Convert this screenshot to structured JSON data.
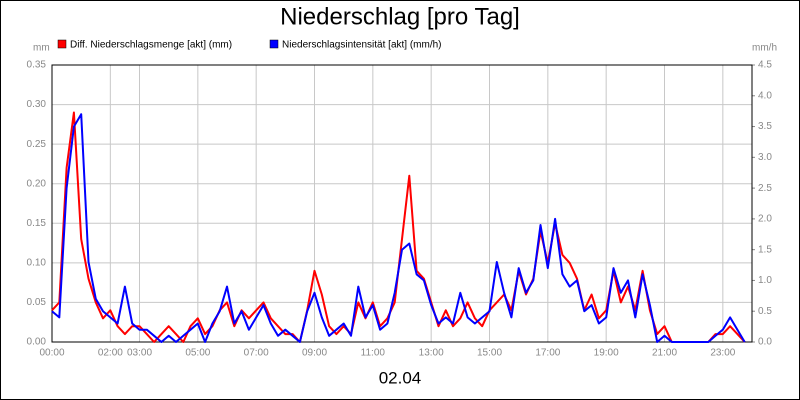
{
  "chart_data": {
    "type": "line",
    "title": "Niederschlag [pro Tag]",
    "xlabel": "02.04",
    "ylabel": "mm",
    "y2label": "mm/h",
    "grid": true,
    "x": [
      0,
      0.25,
      0.5,
      0.75,
      1,
      1.25,
      1.5,
      1.75,
      2,
      2.25,
      2.5,
      2.75,
      3,
      3.25,
      3.5,
      3.75,
      4,
      4.25,
      4.5,
      4.75,
      5,
      5.25,
      5.5,
      5.75,
      6,
      6.25,
      6.5,
      6.75,
      7,
      7.25,
      7.5,
      7.75,
      8,
      8.25,
      8.5,
      8.75,
      9,
      9.25,
      9.5,
      9.75,
      10,
      10.25,
      10.5,
      10.75,
      11,
      11.25,
      11.5,
      11.75,
      12,
      12.25,
      12.5,
      12.75,
      13,
      13.25,
      13.5,
      13.75,
      14,
      14.25,
      14.5,
      14.75,
      15,
      15.25,
      15.5,
      15.75,
      16,
      16.25,
      16.5,
      16.75,
      17,
      17.25,
      17.5,
      17.75,
      18,
      18.25,
      18.5,
      18.75,
      19,
      19.25,
      19.5,
      19.75,
      20,
      20.25,
      20.5,
      20.75,
      21,
      21.25,
      21.5,
      21.75,
      22,
      22.25,
      22.5,
      22.75,
      23,
      23.25,
      23.5,
      23.75
    ],
    "xlim": [
      0,
      24
    ],
    "xticks": [
      {
        "value": 0,
        "label": "00:00"
      },
      {
        "value": 2,
        "label": "02:00"
      },
      {
        "value": 3,
        "label": "03:00"
      },
      {
        "value": 5,
        "label": "05:00"
      },
      {
        "value": 7,
        "label": "07:00"
      },
      {
        "value": 9,
        "label": "09:00"
      },
      {
        "value": 11,
        "label": "11:00"
      },
      {
        "value": 13,
        "label": "13:00"
      },
      {
        "value": 15,
        "label": "15:00"
      },
      {
        "value": 17,
        "label": "17:00"
      },
      {
        "value": 19,
        "label": "19:00"
      },
      {
        "value": 21,
        "label": "21:00"
      },
      {
        "value": 23,
        "label": "23:00"
      }
    ],
    "ylim": [
      0,
      0.35
    ],
    "yticks": [
      {
        "value": 0,
        "label": "0.00"
      },
      0.05,
      {
        "value": 0.1,
        "label": "0.10"
      },
      0.15,
      {
        "value": 0.2,
        "label": "0.20"
      },
      0.25,
      {
        "value": 0.3,
        "label": "0.30"
      },
      0.35
    ],
    "y2lim": [
      0,
      4.5
    ],
    "y2ticks": [
      {
        "value": 0,
        "label": "0.0"
      },
      0.5,
      {
        "value": 1,
        "label": "1.0"
      },
      1.5,
      {
        "value": 2,
        "label": "2.0"
      },
      2.5,
      {
        "value": 3,
        "label": "3.0"
      },
      3.5,
      {
        "value": 4,
        "label": "4.0"
      },
      4.5
    ],
    "series": [
      {
        "name": "Diff. Niederschlagsmenge [akt] (mm)",
        "color": "#ff0000",
        "values": [
          0.04,
          0.05,
          0.22,
          0.29,
          0.13,
          0.08,
          0.05,
          0.03,
          0.04,
          0.02,
          0.01,
          0.02,
          0.02,
          0.01,
          0,
          0.01,
          0.02,
          0.01,
          0,
          0.02,
          0.03,
          0.01,
          0.02,
          0.04,
          0.05,
          0.02,
          0.04,
          0.03,
          0.04,
          0.05,
          0.03,
          0.02,
          0.01,
          0.01,
          0,
          0.04,
          0.09,
          0.06,
          0.02,
          0.01,
          0.02,
          0.01,
          0.05,
          0.03,
          0.05,
          0.02,
          0.03,
          0.05,
          0.13,
          0.21,
          0.09,
          0.08,
          0.05,
          0.02,
          0.04,
          0.02,
          0.03,
          0.05,
          0.03,
          0.02,
          0.04,
          0.05,
          0.06,
          0.04,
          0.09,
          0.06,
          0.08,
          0.14,
          0.1,
          0.15,
          0.11,
          0.1,
          0.08,
          0.04,
          0.06,
          0.03,
          0.04,
          0.09,
          0.05,
          0.07,
          0.04,
          0.09,
          0.04,
          0.01,
          0.02,
          0,
          0,
          0,
          0,
          0,
          0,
          0.01,
          0.01,
          0.02,
          0.01,
          0
        ]
      },
      {
        "name": "Niederschlagsintensität [akt] (mm/h)",
        "color": "#0000ff",
        "axis": "y2",
        "values": [
          0.5,
          0.4,
          2.5,
          3.5,
          3.7,
          1.3,
          0.7,
          0.5,
          0.4,
          0.3,
          0.9,
          0.3,
          0.2,
          0.2,
          0.1,
          0,
          0.1,
          0,
          0.1,
          0.2,
          0.3,
          0,
          0.3,
          0.5,
          0.9,
          0.3,
          0.5,
          0.2,
          0.4,
          0.6,
          0.3,
          0.1,
          0.2,
          0.1,
          0,
          0.5,
          0.8,
          0.4,
          0.1,
          0.2,
          0.3,
          0.1,
          0.9,
          0.4,
          0.6,
          0.2,
          0.3,
          0.8,
          1.5,
          1.6,
          1.1,
          1,
          0.6,
          0.3,
          0.4,
          0.3,
          0.8,
          0.4,
          0.3,
          0.4,
          0.5,
          1.3,
          0.8,
          0.4,
          1.2,
          0.8,
          1,
          1.9,
          1.2,
          2,
          1.1,
          0.9,
          1,
          0.5,
          0.6,
          0.3,
          0.4,
          1.2,
          0.8,
          1,
          0.4,
          1.1,
          0.6,
          0,
          0.1,
          0,
          0,
          0,
          0,
          0,
          0,
          0.1,
          0.2,
          0.4,
          0.2,
          0
        ]
      }
    ]
  }
}
